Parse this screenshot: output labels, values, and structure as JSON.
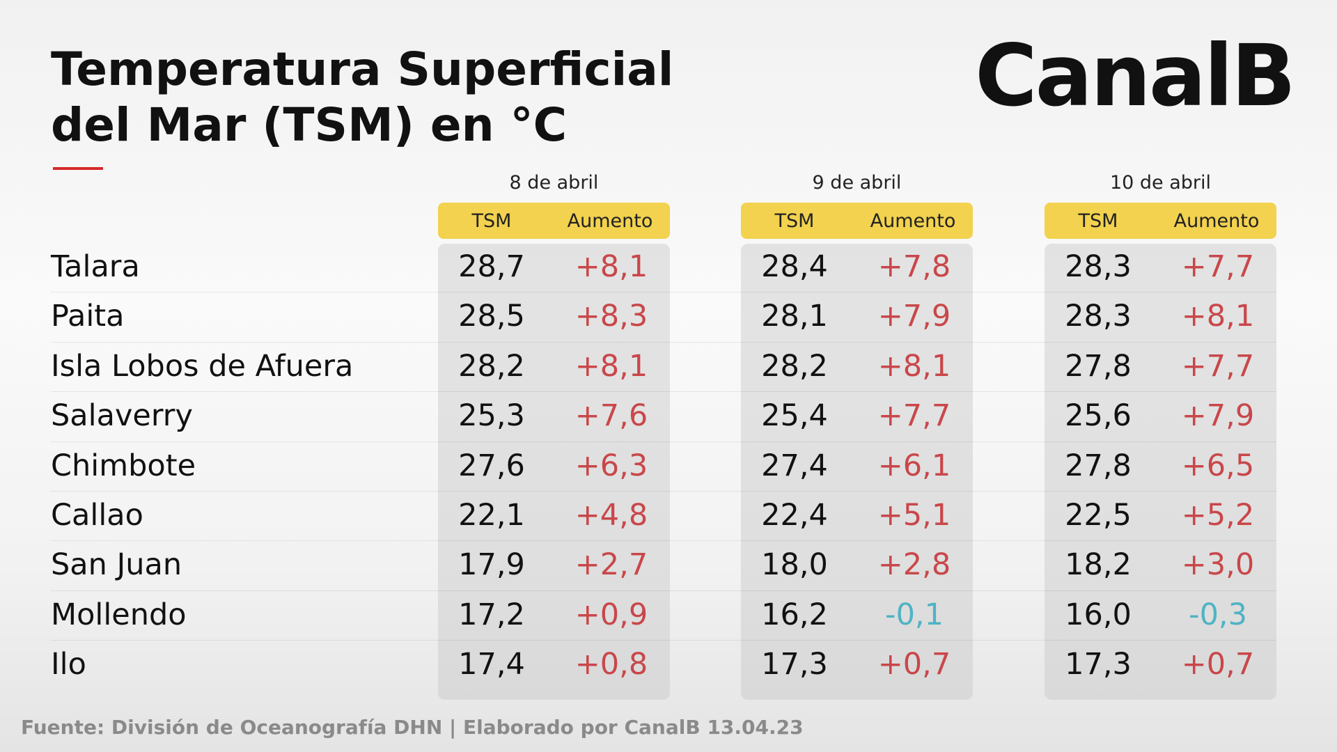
{
  "header": {
    "title": "Temperatura Superficial del Mar (TSM) en °C",
    "logo": "CanalB"
  },
  "table": {
    "groups": [
      "8 de abril",
      "9 de abril",
      "10 de abril"
    ],
    "columns": [
      "TSM",
      "Aumento"
    ],
    "rows": [
      {
        "name": "Talara",
        "values": [
          [
            "28,7",
            "+8,1"
          ],
          [
            "28,4",
            "+7,8"
          ],
          [
            "28,3",
            "+7,7"
          ]
        ]
      },
      {
        "name": "Paita",
        "values": [
          [
            "28,5",
            "+8,3"
          ],
          [
            "28,1",
            "+7,9"
          ],
          [
            "28,3",
            "+8,1"
          ]
        ]
      },
      {
        "name": "Isla Lobos de Afuera",
        "values": [
          [
            "28,2",
            "+8,1"
          ],
          [
            "28,2",
            "+8,1"
          ],
          [
            "27,8",
            "+7,7"
          ]
        ]
      },
      {
        "name": "Salaverry",
        "values": [
          [
            "25,3",
            "+7,6"
          ],
          [
            "25,4",
            "+7,7"
          ],
          [
            "25,6",
            "+7,9"
          ]
        ]
      },
      {
        "name": "Chimbote",
        "values": [
          [
            "27,6",
            "+6,3"
          ],
          [
            "27,4",
            "+6,1"
          ],
          [
            "27,8",
            "+6,5"
          ]
        ]
      },
      {
        "name": "Callao",
        "values": [
          [
            "22,1",
            "+4,8"
          ],
          [
            "22,4",
            "+5,1"
          ],
          [
            "22,5",
            "+5,2"
          ]
        ]
      },
      {
        "name": "San Juan",
        "values": [
          [
            "17,9",
            "+2,7"
          ],
          [
            "18,0",
            "+2,8"
          ],
          [
            "18,2",
            "+3,0"
          ]
        ]
      },
      {
        "name": "Mollendo",
        "values": [
          [
            "17,2",
            "+0,9"
          ],
          [
            "16,2",
            "-0,1"
          ],
          [
            "16,0",
            "-0,3"
          ]
        ]
      },
      {
        "name": "Ilo",
        "values": [
          [
            "17,4",
            "+0,8"
          ],
          [
            "17,3",
            "+0,7"
          ],
          [
            "17,3",
            "+0,7"
          ]
        ]
      }
    ]
  },
  "footer": {
    "source": "Fuente: División de Oceanografía DHN | Elaborado por CanalB 13.04.23"
  }
}
